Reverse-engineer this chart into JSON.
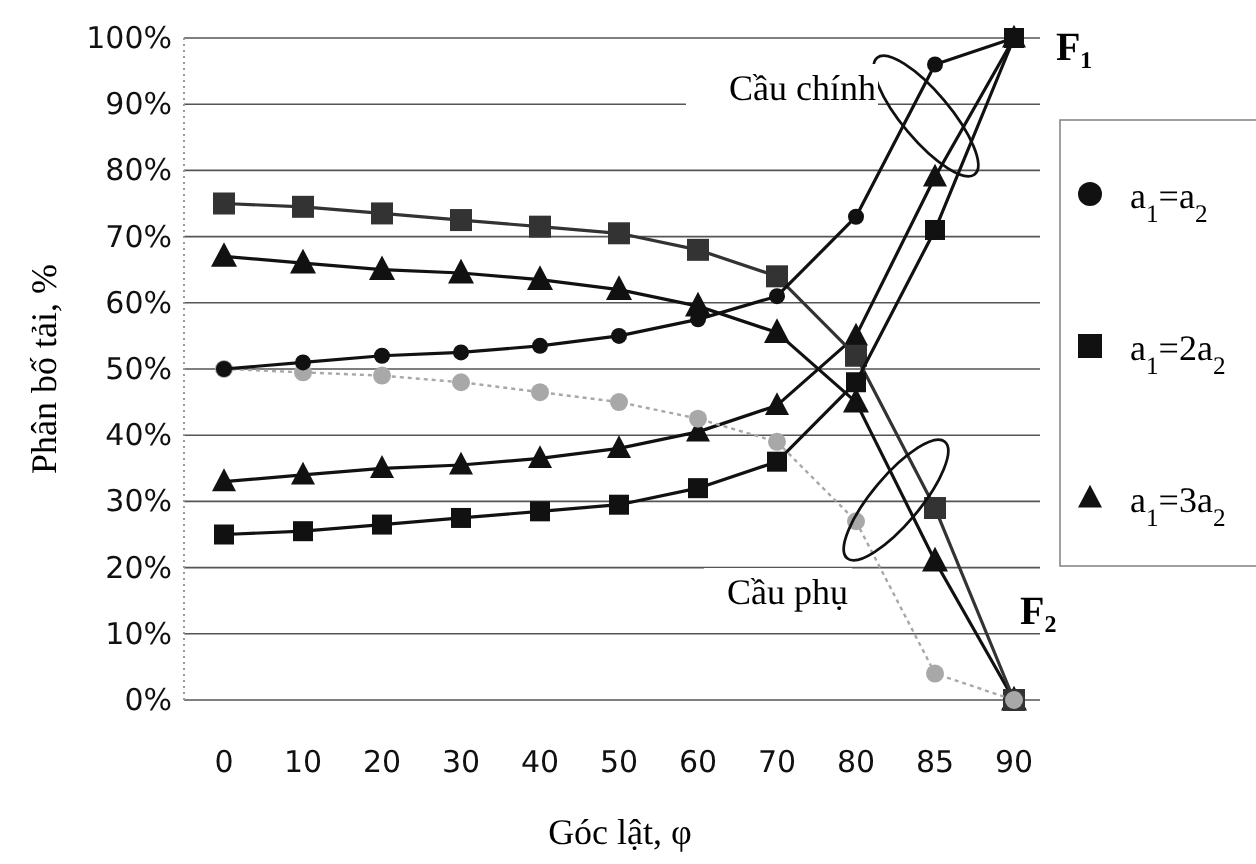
{
  "chart_data": {
    "type": "line",
    "xlabel": "Góc lật, φ",
    "ylabel": "Phân bố tải, %",
    "categories": [
      "0",
      "10",
      "20",
      "30",
      "40",
      "50",
      "60",
      "70",
      "80",
      "85",
      "90"
    ],
    "series": [
      {
        "name": "a$_{1}$=a$_{2}$",
        "color": "#111111",
        "marker": "circle",
        "line_style": "solid",
        "values": [
          50,
          51,
          52,
          52.5,
          53.5,
          55,
          57.5,
          61,
          73,
          96,
          100
        ]
      },
      {
        "color": "#a8a8a8",
        "marker": "circle",
        "line_style": "dotted",
        "values": [
          50,
          49.5,
          49,
          48,
          46.5,
          45,
          42.5,
          39,
          27,
          4,
          0
        ]
      },
      {
        "name": "a$_{1}$=2a$_{2}$",
        "color": "#111111",
        "marker": "square",
        "line_style": "solid",
        "values": [
          25,
          25.5,
          26.5,
          27.5,
          28.5,
          29.5,
          32,
          36,
          48,
          71,
          100
        ]
      },
      {
        "color": "#333333",
        "marker": "square",
        "line_style": "solid",
        "values": [
          75,
          74.5,
          73.5,
          72.5,
          71.5,
          70.5,
          68,
          64,
          52,
          29,
          0
        ]
      },
      {
        "name": "a$_{1}$=3a$_{2}$",
        "color": "#111111",
        "marker": "triangle",
        "line_style": "solid",
        "values": [
          33,
          34,
          35,
          35.5,
          36.5,
          38,
          40.5,
          44.5,
          55,
          79,
          100
        ]
      },
      {
        "color": "#111111",
        "marker": "triangle",
        "line_style": "solid",
        "values": [
          67,
          66,
          65,
          64.5,
          63.5,
          62,
          59.5,
          55.5,
          45,
          21,
          0
        ]
      }
    ],
    "ylim": [
      0,
      100
    ],
    "yticks": [
      {
        "value": 0,
        "label": "0%"
      },
      {
        "value": 10,
        "label": "10%"
      },
      {
        "value": 20,
        "label": "20%"
      },
      {
        "value": 30,
        "label": "30%"
      },
      {
        "value": 40,
        "label": "40%"
      },
      {
        "value": 50,
        "label": "50%"
      },
      {
        "value": 60,
        "label": "60%"
      },
      {
        "value": 70,
        "label": "70%"
      },
      {
        "value": 80,
        "label": "80%"
      },
      {
        "value": 90,
        "label": "90%"
      },
      {
        "value": 100,
        "label": "100%"
      }
    ],
    "grid": "y",
    "legend": "right",
    "annotations": [
      "Cầu chính",
      "Cầu phụ",
      "F₁",
      "F₂"
    ]
  }
}
